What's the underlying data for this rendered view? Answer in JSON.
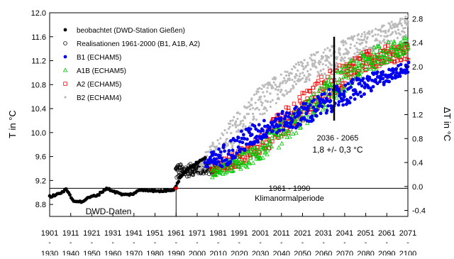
{
  "chart_data": {
    "type": "scatter",
    "title": "",
    "ylabel": "T in °C",
    "ylabel_right": "ΔT in °C",
    "xlim": [
      1901,
      2071
    ],
    "ylim": [
      8.6,
      12.0
    ],
    "ylim_right": [
      -0.5,
      2.9
    ],
    "x_ticks": [
      "1901",
      "1911",
      "1921",
      "1931",
      "1941",
      "1951",
      "1961",
      "1971",
      "1981",
      "1991",
      "2001",
      "2011",
      "2021",
      "2031",
      "2041",
      "2051",
      "2061",
      "2071"
    ],
    "x_ticks_second_row": [
      "1930",
      "1940",
      "1950",
      "1960",
      "1970",
      "1980",
      "1990",
      "2000",
      "2010",
      "2020",
      "2030",
      "2040",
      "2050",
      "2060",
      "2070",
      "2080",
      "2090",
      "2100"
    ],
    "y_ticks": [
      "12.0",
      "11.6",
      "11.2",
      "10.8",
      "10.4",
      "10.0",
      "9.6",
      "9.2",
      "8.8"
    ],
    "y_ticks_right": [
      "2.8",
      "2.4",
      "2.0",
      "1.6",
      "1.2",
      "0.8",
      "0.4",
      "0.0",
      "-0.4"
    ],
    "baseline_y": 9.07,
    "grid": false,
    "legend_position": "top-left",
    "legend": [
      {
        "label": "beobachtet (DWD-Station Gießen)",
        "marker": "filled-circle",
        "color": "#000000"
      },
      {
        "label": "Realisationen 1961-2000 (B1, A1B, A2)",
        "marker": "open-circle",
        "color": "#000000"
      },
      {
        "label": "B1 (ECHAM5)",
        "marker": "filled-circle",
        "color": "#0000ee"
      },
      {
        "label": "A1B (ECHAM5)",
        "marker": "open-triangle",
        "color": "#00cc00"
      },
      {
        "label": "A2 (ECHAM5)",
        "marker": "open-square",
        "color": "#ee0000"
      },
      {
        "label": "B2 (ECHAM4)",
        "marker": "small-dot",
        "color": "#bbbbbb"
      }
    ],
    "series": [
      {
        "name": "beobachtet (DWD-Station Gießen)",
        "color": "#000000",
        "x": [
          1901,
          1905,
          1909,
          1912,
          1916,
          1920,
          1924,
          1928,
          1932,
          1936,
          1940,
          1944,
          1948,
          1952,
          1956,
          1960,
          1963,
          1966,
          1969,
          1972,
          1975
        ],
        "y": [
          8.93,
          8.97,
          9.05,
          8.87,
          8.84,
          8.92,
          8.96,
          9.07,
          9.01,
          8.96,
          8.97,
          9.04,
          9.04,
          9.02,
          9.03,
          9.05,
          9.25,
          9.38,
          9.45,
          9.52,
          9.57
        ]
      },
      {
        "name": "Realisationen 1961-2000 (B1, A1B, A2)",
        "color": "#000000",
        "x": [
          1961,
          1965,
          1970,
          1975,
          1980
        ],
        "lo": [
          9.2,
          9.25,
          9.3,
          9.3,
          9.3
        ],
        "hi": [
          9.5,
          9.45,
          9.5,
          9.5,
          9.5
        ]
      },
      {
        "name": "B2 (ECHAM4)",
        "color": "#bbbbbb",
        "x": [
          1972,
          1980,
          1990,
          2000,
          2010,
          2020,
          2030,
          2040,
          2050,
          2060,
          2071
        ],
        "lo": [
          9.35,
          9.45,
          9.75,
          10.15,
          10.55,
          10.8,
          10.95,
          11.1,
          11.3,
          11.45,
          11.6
        ],
        "hi": [
          9.55,
          9.9,
          10.35,
          10.75,
          11.0,
          11.2,
          11.4,
          11.55,
          11.7,
          11.8,
          11.95
        ]
      },
      {
        "name": "A2 (ECHAM5)",
        "color": "#ee0000",
        "x": [
          1978,
          1990,
          2000,
          2010,
          2020,
          2030,
          2040,
          2050,
          2060,
          2071
        ],
        "lo": [
          9.3,
          9.4,
          9.6,
          9.85,
          10.15,
          10.45,
          10.75,
          11.0,
          11.15,
          11.2
        ],
        "hi": [
          9.45,
          9.7,
          9.95,
          10.35,
          10.65,
          10.95,
          11.15,
          11.35,
          11.45,
          11.5
        ]
      },
      {
        "name": "A1B (ECHAM5)",
        "color": "#00cc00",
        "x": [
          1978,
          1990,
          2000,
          2010,
          2020,
          2030,
          2040,
          2050,
          2060,
          2071
        ],
        "lo": [
          9.25,
          9.35,
          9.5,
          9.75,
          10.05,
          10.35,
          10.65,
          10.95,
          11.15,
          11.3
        ],
        "hi": [
          9.4,
          9.6,
          9.85,
          10.15,
          10.45,
          10.8,
          11.1,
          11.35,
          11.5,
          11.6
        ]
      },
      {
        "name": "B1 (ECHAM5)",
        "color": "#0000ee",
        "x": [
          1975,
          1985,
          1995,
          2005,
          2015,
          2025,
          2035,
          2045,
          2055,
          2065,
          2071
        ],
        "lo": [
          9.35,
          9.45,
          9.7,
          9.95,
          10.05,
          10.15,
          10.35,
          10.5,
          10.7,
          10.9,
          11.0
        ],
        "hi": [
          9.6,
          9.85,
          10.1,
          10.25,
          10.4,
          10.55,
          10.75,
          10.9,
          11.0,
          11.1,
          11.2
        ]
      }
    ],
    "annotations": {
      "period_future_label": "2036 - 2065",
      "period_future_value": "1,8 +/- 0,3 °C",
      "future_marker_x": 2036,
      "future_marker_y": [
        10.2,
        11.6
      ],
      "ref_period_label": "1961 - 1990",
      "ref_period_name": "Klimanormalperiode",
      "dwd_label": "DWD-Daten",
      "divider_x": 1961
    }
  }
}
